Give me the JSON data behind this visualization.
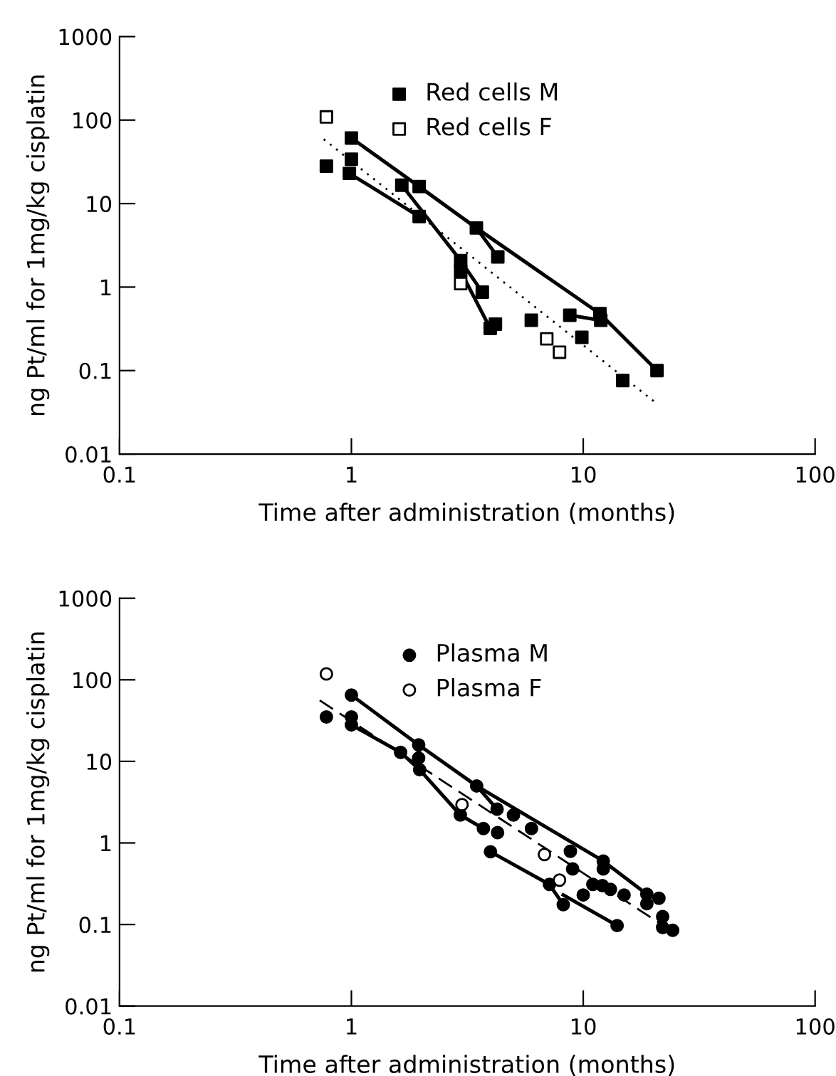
{
  "chart_data": [
    {
      "type": "scatter",
      "xlabel": "Time after administration (months)",
      "ylabel": "ng Pt/ml for 1mg/kg cisplatin",
      "log": "xy",
      "xlim": [
        0.1,
        100
      ],
      "ylim": [
        0.01,
        1000
      ],
      "xticks": [
        0.1,
        1,
        10,
        100
      ],
      "yticks": [
        0.01,
        0.1,
        1,
        10,
        100,
        1000
      ],
      "grid": false,
      "legend": "top",
      "series": [
        {
          "name": "Red cells M",
          "marker": "square",
          "color": "#000000",
          "x": [
            0.78,
            1.0,
            1.0,
            0.98,
            1.65,
            1.96,
            1.96,
            3.46,
            4.28,
            2.96,
            2.96,
            3.67,
            3.97,
            4.18,
            5.97,
            8.75,
            9.86,
            11.8,
            11.9,
            14.8,
            20.8
          ],
          "values": [
            28,
            61,
            34,
            23,
            16.6,
            16,
            7,
            5.1,
            2.3,
            2.07,
            1.55,
            0.87,
            0.32,
            0.36,
            0.4,
            0.46,
            0.25,
            0.48,
            0.4,
            0.076,
            0.1
          ]
        },
        {
          "name": "Red cells F",
          "marker": "square",
          "color": "#ffffff",
          "x": [
            0.78,
            2.96,
            6.96,
            7.9
          ],
          "values": [
            109,
            1.1,
            0.24,
            0.166
          ]
        },
        {
          "type": "line",
          "marker": "none",
          "line_style": "solid",
          "color": "#000000",
          "x": [
            1.0,
            1.96,
            3.46,
            11.8,
            20.8
          ],
          "values": [
            61,
            16,
            5.1,
            0.48,
            0.1
          ]
        },
        {
          "type": "line",
          "marker": "none",
          "line_style": "solid",
          "color": "#000000",
          "x": [
            3.46,
            4.28
          ],
          "values": [
            5.1,
            2.3
          ]
        },
        {
          "type": "line",
          "marker": "none",
          "line_style": "solid",
          "color": "#000000",
          "x": [
            0.98,
            1.96
          ],
          "values": [
            23,
            7
          ]
        },
        {
          "type": "line",
          "marker": "none",
          "line_style": "solid",
          "color": "#000000",
          "x": [
            1.65,
            2.96,
            3.67
          ],
          "values": [
            16.6,
            2.07,
            0.87
          ]
        },
        {
          "type": "line",
          "marker": "none",
          "line_style": "solid",
          "color": "#000000",
          "x": [
            2.96,
            3.97
          ],
          "values": [
            1.55,
            0.32
          ]
        },
        {
          "type": "line",
          "marker": "none",
          "line_style": "solid",
          "color": "#000000",
          "x": [
            8.75,
            11.9
          ],
          "values": [
            0.46,
            0.4
          ]
        },
        {
          "type": "line",
          "marker": "none",
          "line_style": "dotted",
          "color": "#000000",
          "x": [
            0.76,
            20.8
          ],
          "values": [
            59,
            0.04
          ]
        }
      ]
    },
    {
      "type": "scatter",
      "xlabel": "Time after administration (months)",
      "ylabel": "ng Pt/ml for 1mg/kg cisplatin",
      "log": "xy",
      "xlim": [
        0.1,
        100
      ],
      "ylim": [
        0.01,
        1000
      ],
      "xticks": [
        0.1,
        1,
        10,
        100
      ],
      "yticks": [
        0.01,
        0.1,
        1,
        10,
        100,
        1000
      ],
      "grid": false,
      "legend": "top",
      "series": [
        {
          "name": "Plasma M",
          "marker": "circle",
          "color": "#000000",
          "x": [
            0.78,
            1.0,
            1.0,
            1.0,
            1.63,
            1.95,
            1.95,
            1.97,
            3.47,
            4.25,
            5.0,
            2.95,
            3.71,
            4.27,
            3.98,
            5.98,
            8.8,
            9.0,
            12.2,
            12.2,
            7.15,
            8.2,
            10,
            11,
            12.1,
            13.1,
            15,
            14,
            18.8,
            18.8,
            21.2,
            22,
            22,
            24.3
          ],
          "values": [
            35,
            65,
            35,
            28,
            12.9,
            15.9,
            11,
            7.9,
            5.0,
            2.6,
            2.2,
            2.2,
            1.5,
            1.34,
            0.78,
            1.5,
            0.79,
            0.48,
            0.6,
            0.48,
            0.31,
            0.175,
            0.23,
            0.31,
            0.3,
            0.27,
            0.23,
            0.097,
            0.235,
            0.18,
            0.21,
            0.125,
            0.092,
            0.085
          ]
        },
        {
          "name": "Plasma F",
          "marker": "circle",
          "color": "#ffffff",
          "x": [
            0.78,
            3.0,
            6.8,
            7.9
          ],
          "values": [
            118,
            2.95,
            0.72,
            0.35
          ]
        },
        {
          "type": "line",
          "marker": "none",
          "line_style": "solid",
          "color": "#000000",
          "x": [
            1.0,
            1.95,
            3.47,
            12.2,
            18.8
          ],
          "values": [
            65,
            15.9,
            5.0,
            0.6,
            0.235
          ]
        },
        {
          "type": "line",
          "marker": "none",
          "line_style": "solid",
          "color": "#000000",
          "x": [
            3.47,
            4.25
          ],
          "values": [
            5.0,
            2.6
          ]
        },
        {
          "type": "line",
          "marker": "none",
          "line_style": "solid",
          "color": "#000000",
          "x": [
            1.0,
            1.63,
            1.97,
            2.95,
            3.71
          ],
          "values": [
            28,
            12.9,
            7.9,
            2.2,
            1.5
          ]
        },
        {
          "type": "line",
          "marker": "none",
          "line_style": "solid",
          "color": "#000000",
          "x": [
            3.98,
            7.15,
            8.2
          ],
          "values": [
            0.78,
            0.31,
            0.175
          ]
        },
        {
          "type": "line",
          "marker": "none",
          "line_style": "solid",
          "color": "#000000",
          "x": [
            8.2,
            14
          ],
          "values": [
            0.23,
            0.097
          ]
        },
        {
          "type": "line",
          "marker": "none",
          "line_style": "dashed",
          "color": "#000000",
          "x": [
            0.73,
            22
          ],
          "values": [
            56,
            0.098
          ]
        }
      ]
    }
  ]
}
